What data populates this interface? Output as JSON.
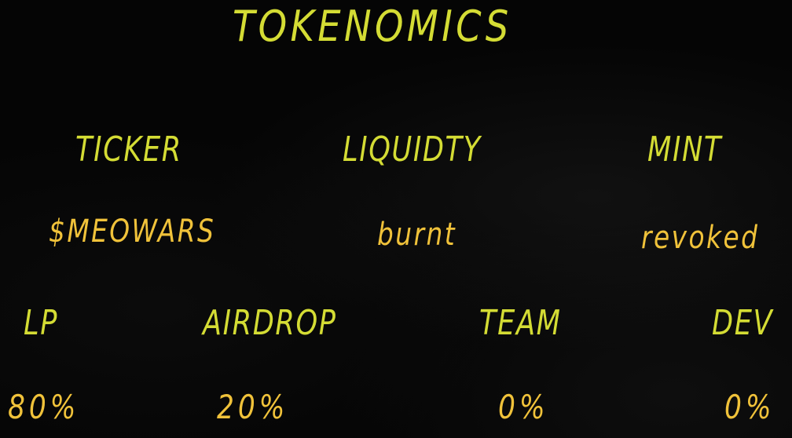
{
  "title": "TOKENOMICS",
  "info": {
    "ticker": {
      "label": "TICKER",
      "value": "$MEOWARS"
    },
    "liquidity": {
      "label": "LIQUIDTY",
      "value": "burnt"
    },
    "mint": {
      "label": "MINT",
      "value": "revoked"
    }
  },
  "allocation": {
    "lp": {
      "label": "LP",
      "value": "80%"
    },
    "airdrop": {
      "label": "AIRDROP",
      "value": "20%"
    },
    "team": {
      "label": "TEAM",
      "value": "0%"
    },
    "dev": {
      "label": "DEV",
      "value": "0%"
    }
  },
  "colors": {
    "background": "#050505",
    "heading": "#d4dc34",
    "value": "#f0c23a"
  }
}
